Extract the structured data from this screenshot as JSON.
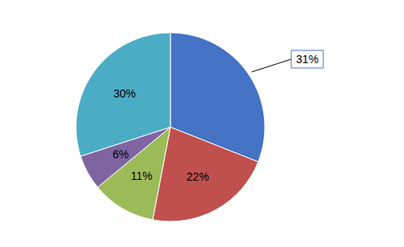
{
  "chart_data": {
    "type": "pie",
    "values": [
      31,
      22,
      11,
      6,
      30
    ],
    "value_labels": [
      "31%",
      "22%",
      "11%",
      "6%",
      "30%"
    ],
    "colors": [
      "#4472C4",
      "#C0504D",
      "#9BBB59",
      "#8064A2",
      "#4BACC6"
    ],
    "data_labels": true
  }
}
